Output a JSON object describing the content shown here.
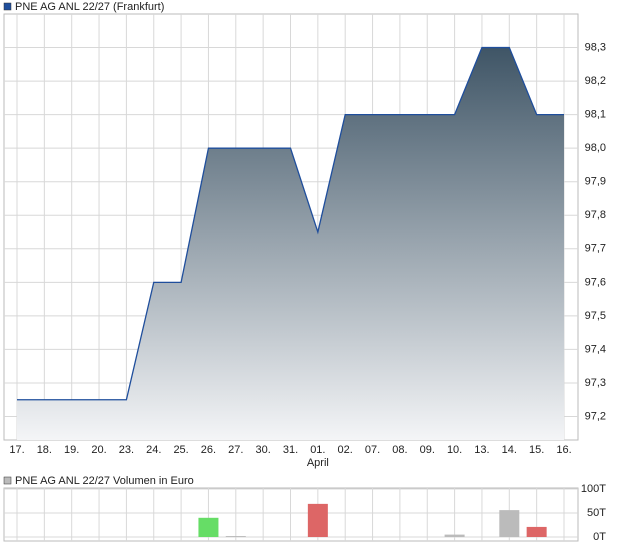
{
  "chart_data": [
    {
      "type": "area-line",
      "series": [
        {
          "name": "PNE AG  ANL 22/27 (Frankfurt)",
          "color": "#1f4e9c",
          "values": [
            97.25,
            97.25,
            97.25,
            97.25,
            97.25,
            97.6,
            97.6,
            98.0,
            98.0,
            98.0,
            98.0,
            97.75,
            98.1,
            98.1,
            98.1,
            98.1,
            98.1,
            98.3,
            98.3,
            98.1,
            98.1
          ]
        }
      ],
      "categories": [
        "17.",
        "18.",
        "19.",
        "20.",
        "23.",
        "24.",
        "25.",
        "26.",
        "27.",
        "30.",
        "31.",
        "01.",
        "02.",
        "07.",
        "08.",
        "09.",
        "10.",
        "13.",
        "14.",
        "15.",
        "16."
      ],
      "month_labels": [
        {
          "index": 11,
          "label": "April"
        }
      ],
      "ylim": [
        97.13,
        98.4
      ],
      "yticks": [
        {
          "value": 97.2,
          "label": "97,2"
        },
        {
          "value": 97.3,
          "label": "97,3"
        },
        {
          "value": 97.4,
          "label": "97,4"
        },
        {
          "value": 97.5,
          "label": "97,5"
        },
        {
          "value": 97.6,
          "label": "97,6"
        },
        {
          "value": 97.7,
          "label": "97,7"
        },
        {
          "value": 97.8,
          "label": "97,8"
        },
        {
          "value": 97.9,
          "label": "97,9"
        },
        {
          "value": 98.0,
          "label": "98,0"
        },
        {
          "value": 98.1,
          "label": "98,1"
        },
        {
          "value": 98.2,
          "label": "98,2"
        },
        {
          "value": 98.3,
          "label": "98,3"
        }
      ],
      "fill_top": "#3f5566",
      "fill_bottom": "#f4f5f7",
      "grid": true
    },
    {
      "type": "bar",
      "series": [
        {
          "name": "PNE AG  ANL 22/27 Volumen in Euro",
          "color": "#bbbbbb",
          "values": [
            null,
            null,
            null,
            null,
            null,
            null,
            null,
            40,
            2,
            null,
            null,
            69,
            null,
            null,
            null,
            null,
            5,
            null,
            56,
            21,
            null
          ],
          "colors": [
            null,
            null,
            null,
            null,
            null,
            null,
            null,
            "#66dd66",
            "#bbbbbb",
            null,
            null,
            "#dd6666",
            null,
            null,
            null,
            null,
            "#bbbbbb",
            null,
            "#bbbbbb",
            "#dd6666",
            null
          ]
        }
      ],
      "ylim": [
        0,
        100
      ],
      "yticks": [
        {
          "value": 0,
          "label": "0T"
        },
        {
          "value": 50,
          "label": "50T"
        },
        {
          "value": 100,
          "label": "100T"
        }
      ],
      "grid": true
    }
  ]
}
